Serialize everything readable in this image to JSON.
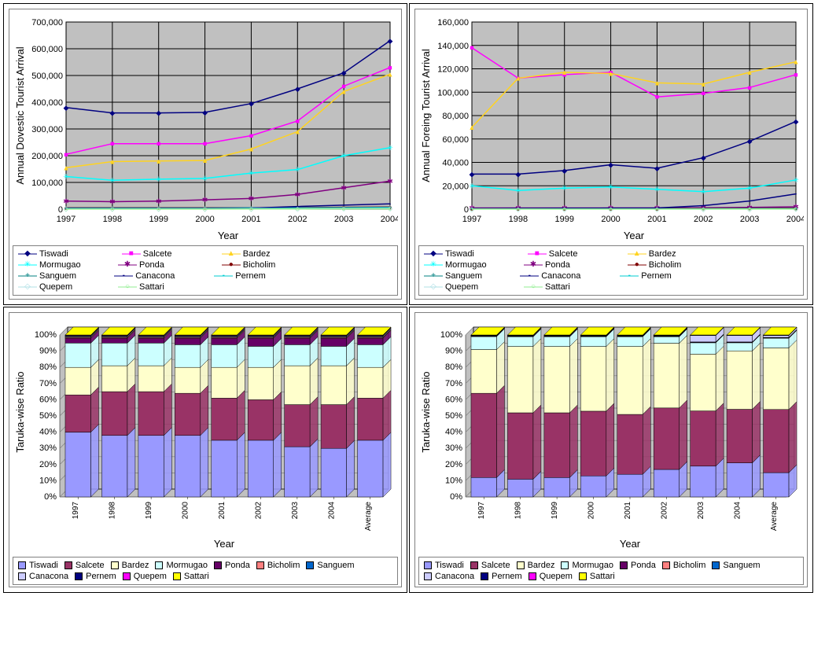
{
  "years": [
    "1997",
    "1998",
    "1999",
    "2000",
    "2001",
    "2002",
    "2003",
    "2004"
  ],
  "barYears": [
    "1997",
    "1998",
    "1999",
    "2000",
    "2001",
    "2002",
    "2003",
    "2004",
    "Average"
  ],
  "seriesNames": [
    "Tiswadi",
    "Salcete",
    "Bardez",
    "Mormugao",
    "Ponda",
    "Bicholim",
    "Sanguem",
    "Canacona",
    "Pernem",
    "Quepem",
    "Sattari"
  ],
  "lineColorsA": [
    "#000080",
    "#ff00ff",
    "#ffd320",
    "#00ffff",
    "#800080",
    "#800000",
    "#008080",
    "#000080",
    "#00ced1",
    "#b0e0e6",
    "#90ee90"
  ],
  "markers": [
    "◆",
    "■",
    "▲",
    "✳",
    "✱",
    "●",
    "+",
    "-",
    "-",
    "◇",
    "○"
  ],
  "domesticChart": {
    "type": "line",
    "ylabel": "Annual Dovestic Tourist Arrival",
    "ylabel_fontsize": 13,
    "xlabel": "Year",
    "xlabel_fontsize": 13,
    "ylim": [
      0,
      700000
    ],
    "ytick_step": 100000,
    "plot_bg": "#c0c0c0",
    "grid_color": "#000000",
    "series": {
      "Tiswadi": [
        380000,
        360000,
        360000,
        362000,
        395000,
        450000,
        510000,
        630000
      ],
      "Salcete": [
        205000,
        245000,
        245000,
        245000,
        275000,
        330000,
        460000,
        530000
      ],
      "Bardez": [
        155000,
        178000,
        180000,
        182000,
        225000,
        290000,
        440000,
        505000
      ],
      "Mormugao": [
        122000,
        108000,
        112000,
        115000,
        135000,
        148000,
        200000,
        230000
      ],
      "Ponda": [
        30000,
        28000,
        30000,
        35000,
        40000,
        55000,
        80000,
        105000
      ],
      "Bicholim": [
        5000,
        5000,
        5000,
        5000,
        5000,
        6000,
        7000,
        8000
      ],
      "Sanguem": [
        4000,
        4000,
        4000,
        4000,
        5000,
        5000,
        6000,
        7000
      ],
      "Canacona": [
        3000,
        3000,
        3000,
        3000,
        4000,
        10000,
        15000,
        20000
      ],
      "Pernem": [
        2000,
        2000,
        2000,
        2000,
        3000,
        3000,
        4000,
        5000
      ],
      "Quepem": [
        1000,
        1000,
        1000,
        1000,
        1500,
        2000,
        2500,
        3000
      ],
      "Sattari": [
        500,
        500,
        500,
        500,
        700,
        800,
        1000,
        1200
      ]
    }
  },
  "foreignChart": {
    "type": "line",
    "ylabel": "Annual Foreing Tourist Arrival",
    "ylabel_fontsize": 13,
    "xlabel": "Year",
    "xlabel_fontsize": 13,
    "ylim": [
      0,
      160000
    ],
    "ytick_step": 20000,
    "plot_bg": "#c0c0c0",
    "grid_color": "#000000",
    "series": {
      "Tiswadi": [
        30000,
        30000,
        33000,
        38000,
        35000,
        44000,
        58000,
        75000
      ],
      "Salcete": [
        138000,
        112000,
        115000,
        117000,
        96000,
        99000,
        104000,
        115000
      ],
      "Bardez": [
        70000,
        112000,
        117000,
        116000,
        108000,
        107000,
        117000,
        126000
      ],
      "Mormugao": [
        20000,
        16000,
        18000,
        19000,
        17000,
        15000,
        18000,
        25000
      ],
      "Ponda": [
        1000,
        1000,
        1000,
        1000,
        1000,
        1200,
        1500,
        2000
      ],
      "Bicholim": [
        500,
        500,
        500,
        500,
        500,
        600,
        700,
        800
      ],
      "Sanguem": [
        300,
        300,
        300,
        300,
        300,
        350,
        400,
        450
      ],
      "Canacona": [
        500,
        700,
        800,
        900,
        1000,
        3000,
        7000,
        13000
      ],
      "Pernem": [
        200,
        200,
        200,
        200,
        200,
        250,
        300,
        350
      ],
      "Quepem": [
        100,
        100,
        100,
        100,
        100,
        120,
        150,
        200
      ],
      "Sattari": [
        50,
        50,
        50,
        50,
        50,
        60,
        70,
        80
      ]
    }
  },
  "barColors": [
    "#9999ff",
    "#993366",
    "#ffffcc",
    "#ccffff",
    "#660066",
    "#ff8080",
    "#0066cc",
    "#ccccff",
    "#000080",
    "#ff00ff",
    "#ffff00"
  ],
  "domesticBar": {
    "type": "stacked-bar-3d",
    "ylabel": "Taruka-wise Ratio",
    "ylabel_fontsize": 13,
    "xlabel": "Year",
    "xlabel_fontsize": 13,
    "ylim": [
      0,
      100
    ],
    "ytick_step": 10,
    "ytick_suffix": "%",
    "plot_bg": "#c0c0c0",
    "grid_color": "#808080",
    "data": {
      "Tiswadi": [
        40,
        38,
        38,
        38,
        35,
        35,
        31,
        30,
        35
      ],
      "Salcete": [
        23,
        27,
        27,
        26,
        26,
        25,
        26,
        27,
        26
      ],
      "Bardez": [
        17,
        16,
        16,
        16,
        19,
        20,
        24,
        24,
        19
      ],
      "Mormugao": [
        15,
        14,
        14,
        14,
        14,
        13,
        13,
        12,
        14
      ],
      "Ponda": [
        3,
        3,
        3,
        4,
        4,
        5,
        4,
        5,
        4
      ],
      "Bicholim": [
        0.5,
        0.5,
        0.5,
        0.5,
        0.5,
        0.5,
        0.5,
        0.5,
        0.5
      ],
      "Sanguem": [
        0.3,
        0.3,
        0.3,
        0.3,
        0.3,
        0.3,
        0.3,
        0.3,
        0.3
      ],
      "Canacona": [
        0.5,
        0.5,
        0.5,
        0.5,
        0.5,
        0.5,
        0.5,
        0.5,
        0.5
      ],
      "Pernem": [
        0.2,
        0.2,
        0.2,
        0.2,
        0.2,
        0.2,
        0.2,
        0.2,
        0.2
      ],
      "Quepem": [
        0.3,
        0.3,
        0.3,
        0.3,
        0.3,
        0.3,
        0.3,
        0.3,
        0.3
      ],
      "Sattari": [
        0.2,
        0.2,
        0.2,
        0.2,
        0.2,
        0.2,
        0.2,
        0.2,
        0.2
      ]
    }
  },
  "foreignBar": {
    "type": "stacked-bar-3d",
    "ylabel": "Taruka-wise Ratio",
    "ylabel_fontsize": 13,
    "xlabel": "Year",
    "xlabel_fontsize": 13,
    "ylim": [
      0,
      100
    ],
    "ytick_step": 10,
    "ytick_suffix": "%",
    "plot_bg": "#c0c0c0",
    "grid_color": "#808080",
    "data": {
      "Tiswadi": [
        12,
        11,
        12,
        13,
        14,
        17,
        19,
        21,
        15
      ],
      "Salcete": [
        52,
        41,
        40,
        40,
        37,
        38,
        34,
        33,
        39
      ],
      "Bardez": [
        27,
        41,
        41,
        40,
        42,
        40,
        35,
        36,
        38
      ],
      "Mormugao": [
        8,
        6,
        6,
        6,
        6,
        4,
        7,
        5,
        6
      ],
      "Ponda": [
        0.3,
        0.3,
        0.3,
        0.3,
        0.3,
        0.3,
        0.3,
        0.3,
        0.3
      ],
      "Bicholim": [
        0.1,
        0.1,
        0.1,
        0.1,
        0.1,
        0.1,
        0.1,
        0.1,
        0.1
      ],
      "Sanguem": [
        0.1,
        0.1,
        0.1,
        0.1,
        0.1,
        0.1,
        0.1,
        0.1,
        0.1
      ],
      "Canacona": [
        0.2,
        0.3,
        0.3,
        0.3,
        0.3,
        0.3,
        4,
        4,
        1.2
      ],
      "Pernem": [
        0.1,
        0.1,
        0.1,
        0.1,
        0.1,
        0.1,
        0.1,
        0.1,
        0.1
      ],
      "Quepem": [
        0.1,
        0.1,
        0.1,
        0.1,
        0.1,
        0.1,
        0.1,
        0.1,
        0.1
      ],
      "Sattari": [
        0.1,
        0.1,
        0.1,
        0.1,
        0.1,
        0.1,
        0.1,
        0.1,
        0.1
      ]
    }
  }
}
